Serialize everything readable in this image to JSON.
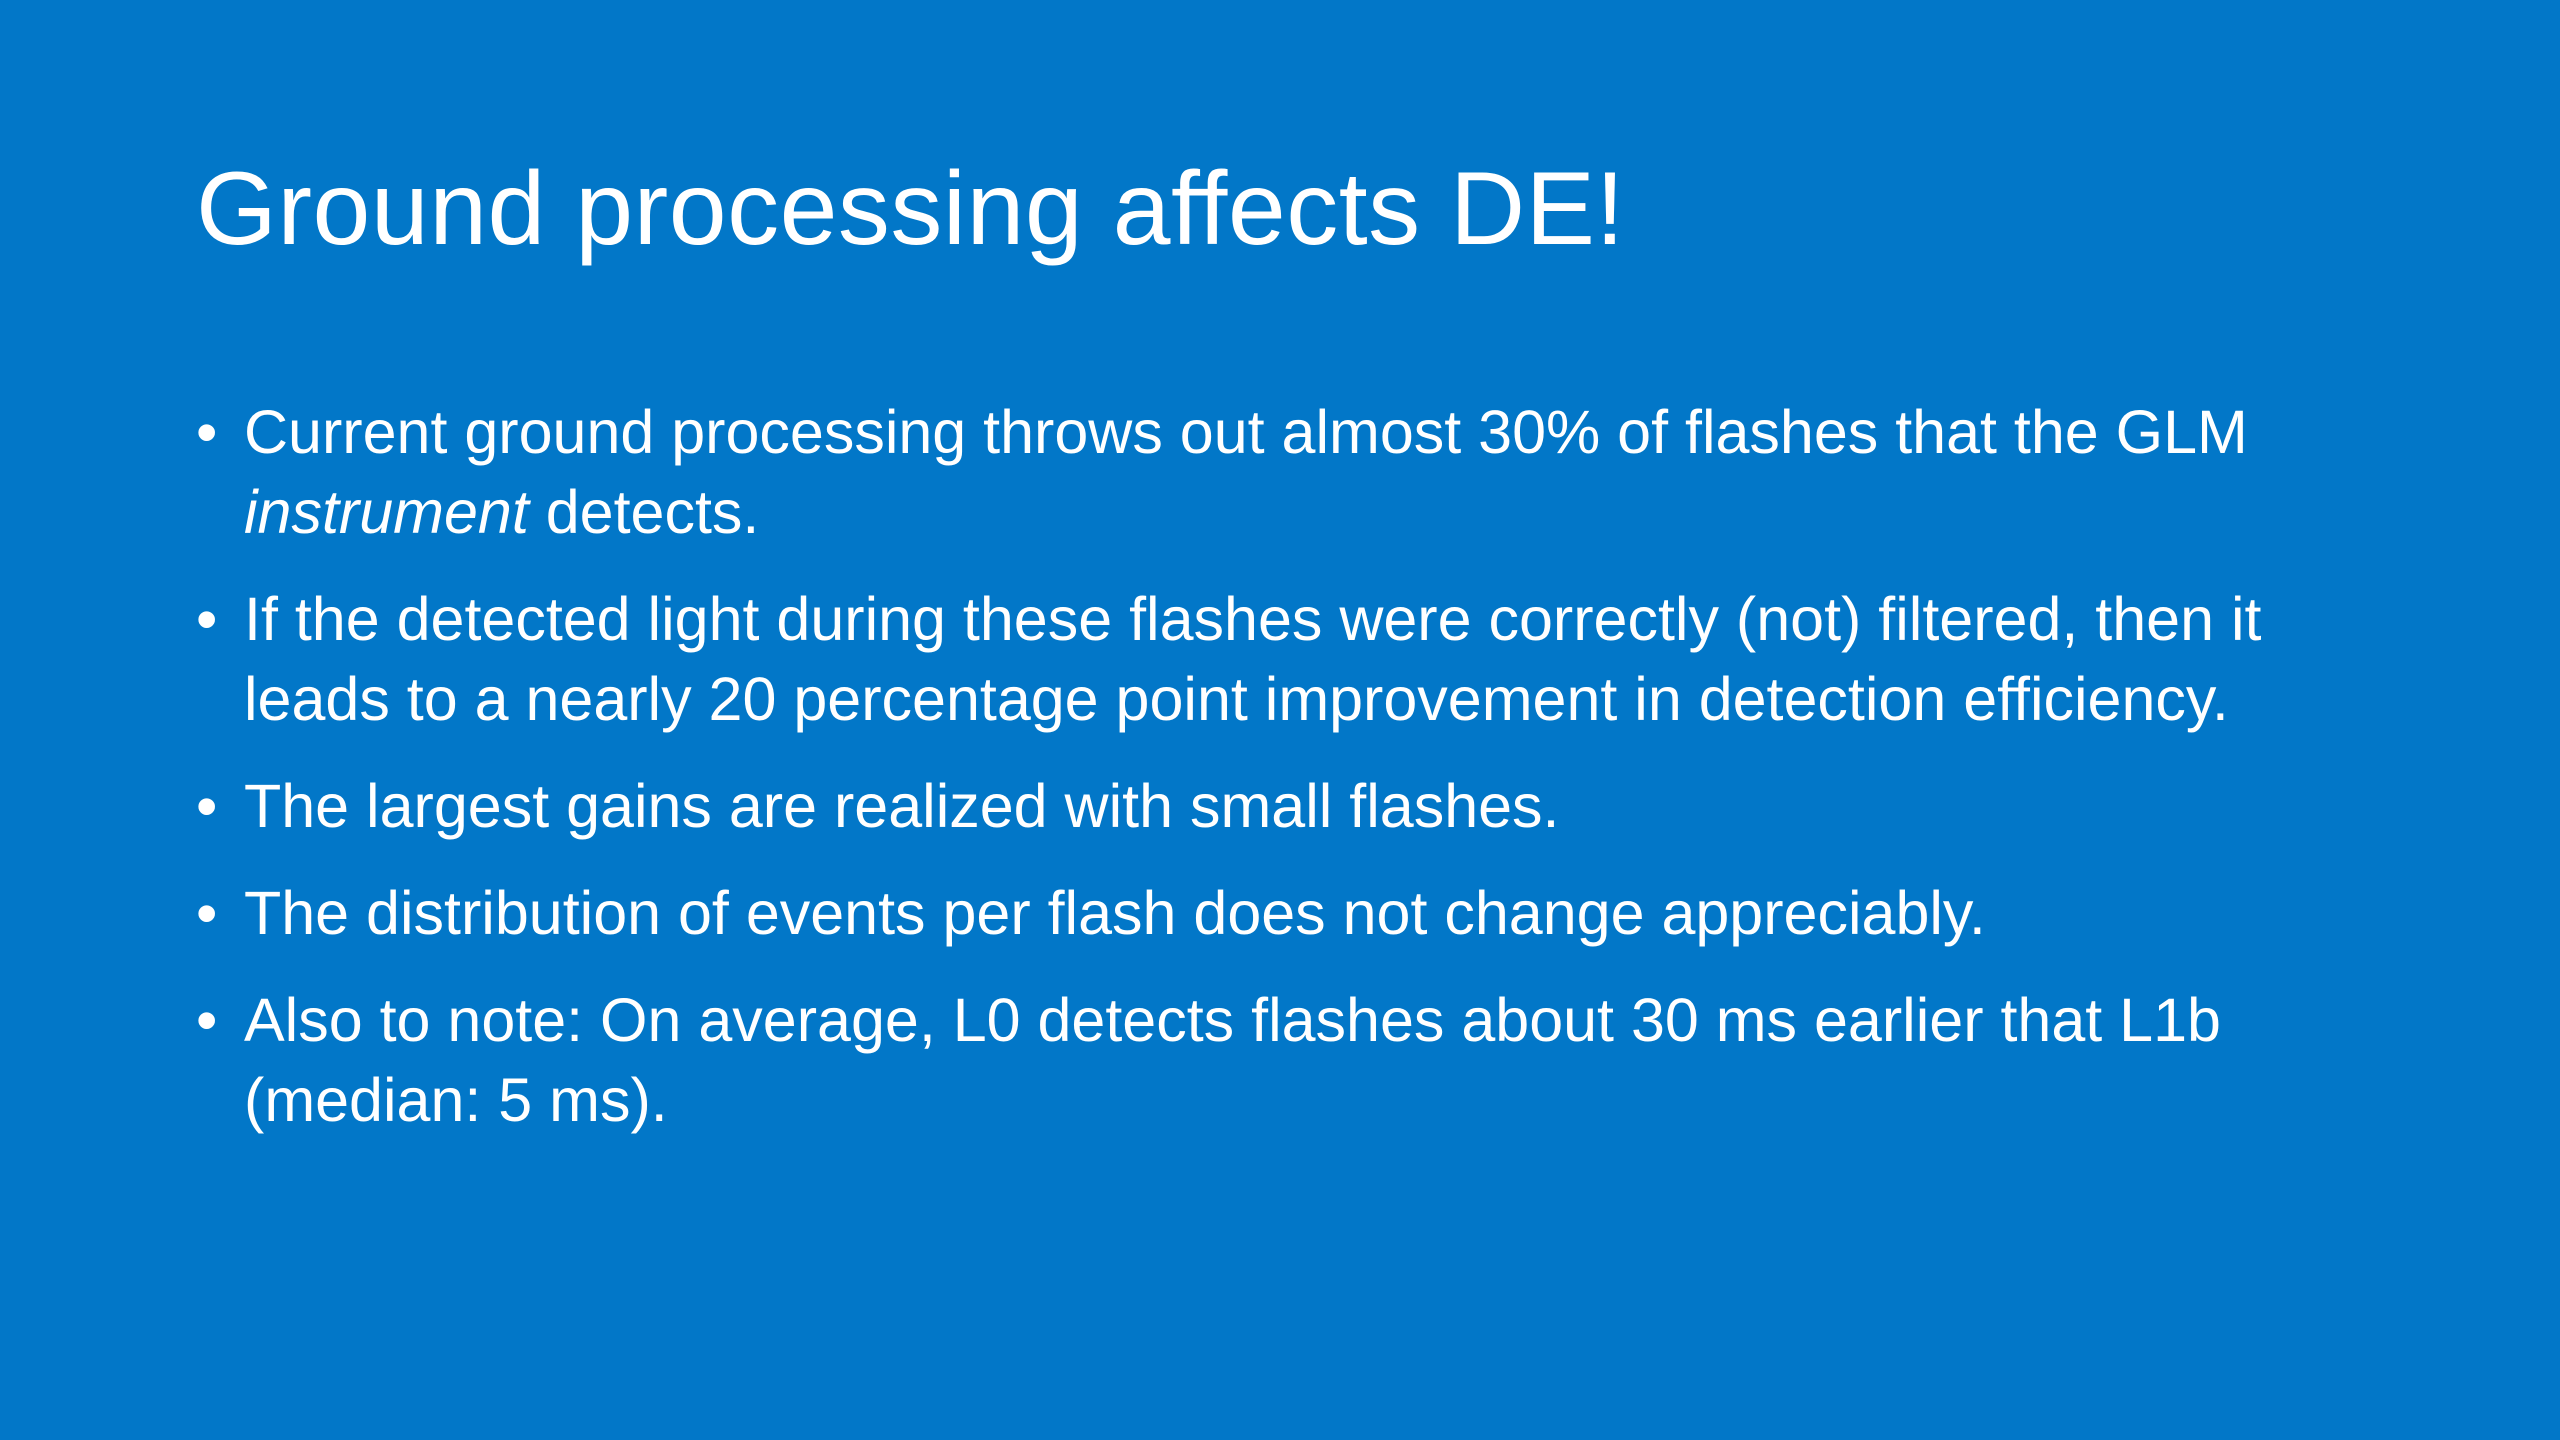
{
  "slide": {
    "title": "Ground processing affects DE!",
    "bullet_glyph": "•",
    "bullets": [
      {
        "pre": "Current ground processing throws out almost 30% of flashes that the GLM ",
        "em": "instrument",
        "post": " detects."
      },
      {
        "text": "If the detected light during these flashes were correctly (not) filtered, then it leads to a nearly 20 percentage point improvement in detection efficiency."
      },
      {
        "text": "The largest gains are realized with small flashes."
      },
      {
        "text": "The distribution of events per flash does not change appreciably."
      },
      {
        "text": "Also to note: On average, L0 detects flashes about 30 ms earlier that L1b (median: 5 ms)."
      }
    ]
  },
  "colors": {
    "background": "#0277c8",
    "text": "#ffffff"
  }
}
